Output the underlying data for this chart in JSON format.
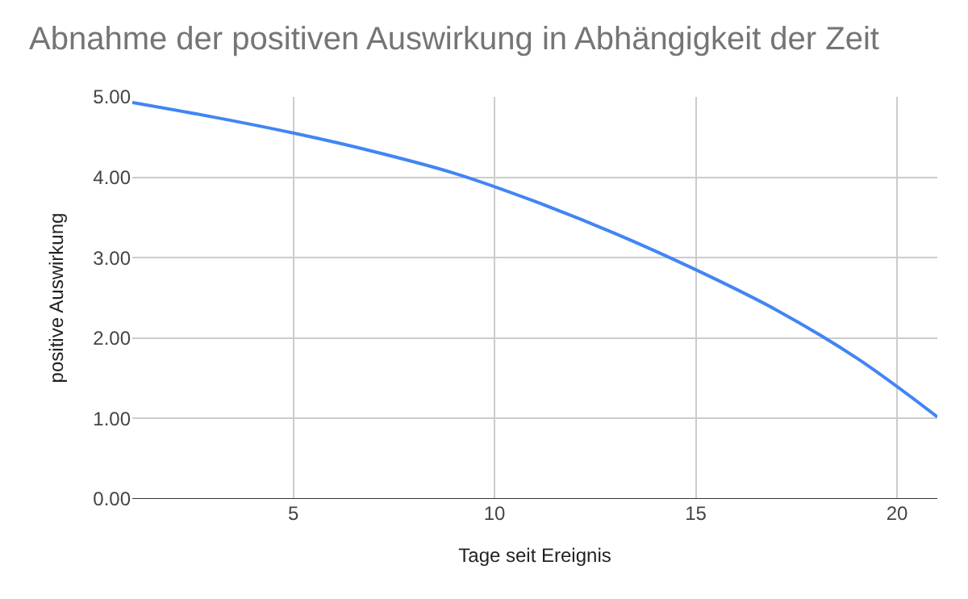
{
  "chart_data": {
    "type": "line",
    "title": "Abnahme der positiven Auswirkung in Abhängigkeit der Zeit",
    "xlabel": "Tage seit Ereignis",
    "ylabel": "positive Auswirkung",
    "x": [
      1,
      3,
      5,
      7,
      9,
      11,
      13,
      15,
      17,
      19,
      21
    ],
    "series": [
      {
        "color": "#4285f4",
        "values": [
          4.93,
          4.75,
          4.55,
          4.32,
          4.05,
          3.7,
          3.3,
          2.85,
          2.35,
          1.75,
          1.02
        ]
      }
    ],
    "xlim": [
      1,
      21
    ],
    "xticks": [
      5,
      10,
      15,
      20
    ],
    "ylim": [
      0,
      5
    ],
    "yticks": [
      {
        "value": 0,
        "label": "0.00"
      },
      {
        "value": 1,
        "label": "1.00"
      },
      {
        "value": 2,
        "label": "2.00"
      },
      {
        "value": 3,
        "label": "3.00"
      },
      {
        "value": 4,
        "label": "4.00"
      },
      {
        "value": 5,
        "label": "5.00"
      }
    ],
    "grid": true,
    "marker": "none",
    "line_style": "solid"
  }
}
